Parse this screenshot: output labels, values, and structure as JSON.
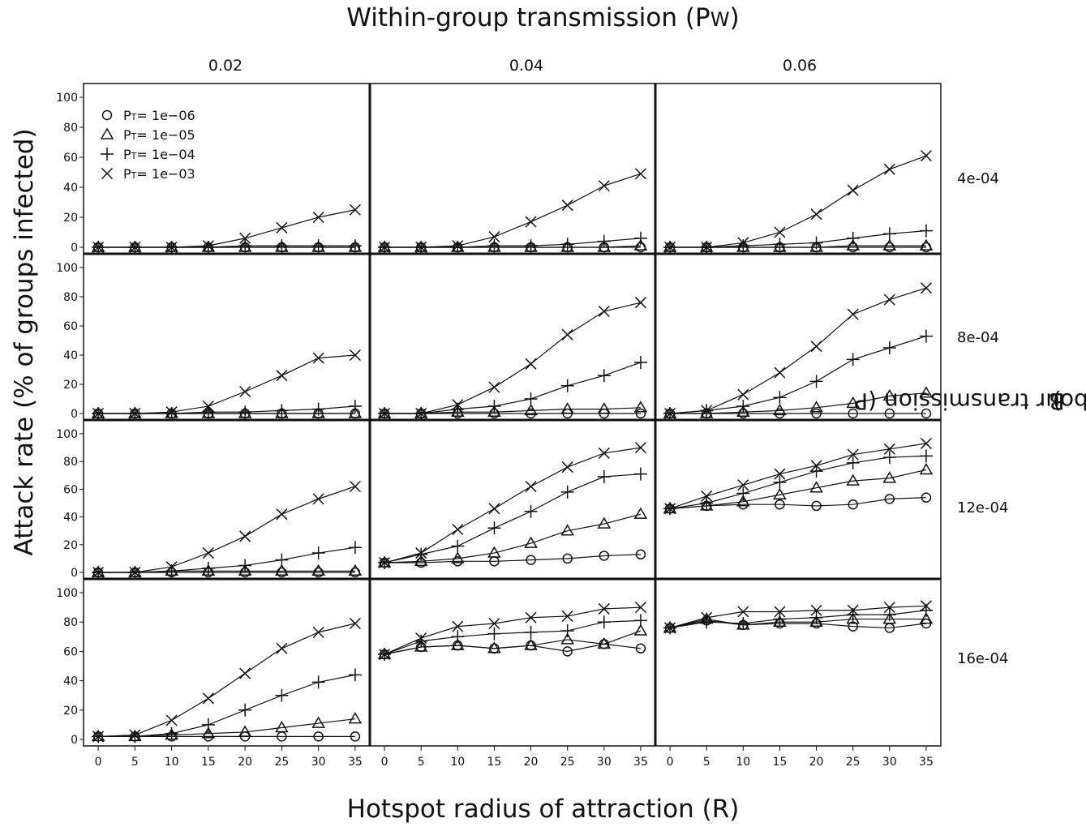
{
  "top_title": {
    "main": "Within-group transmission (P",
    "sub": "W",
    "close": ")"
  },
  "x_title": "Hotspot radius of attraction (R)",
  "y_title": "Attack rate  (% of groups infected)",
  "right_title": {
    "main": "Between-neighbour transmission (P",
    "sub": "B",
    "close": ")"
  },
  "col_labels": [
    "0.02",
    "0.04",
    "0.06"
  ],
  "row_labels": [
    "4e-04",
    "8e-04",
    "12e-04",
    "16e-04"
  ],
  "legend": [
    {
      "prefix": "P",
      "sub": "T",
      "label": "= 1e−06",
      "marker": "circle"
    },
    {
      "prefix": "P",
      "sub": "T",
      "label": "= 1e−05",
      "marker": "triangle"
    },
    {
      "prefix": "P",
      "sub": "T",
      "label": "= 1e−04",
      "marker": "plus"
    },
    {
      "prefix": "P",
      "sub": "T",
      "label": "= 1e−03",
      "marker": "cross"
    }
  ],
  "chart_data": {
    "type": "line",
    "layout": "faceted grid, rows = between-neighbour transmission, columns = within-group transmission",
    "x": [
      0,
      5,
      10,
      15,
      20,
      25,
      30,
      35
    ],
    "x_ticks": [
      "0",
      "5",
      "10",
      "15",
      "20",
      "25",
      "30",
      "35"
    ],
    "y_ticks": [
      "0",
      "20",
      "40",
      "60",
      "80",
      "100"
    ],
    "ylim": [
      0,
      100
    ],
    "xlim": [
      -2,
      37
    ],
    "grid": false,
    "legend_position": "top-left of first panel",
    "panels": [
      {
        "row": 0,
        "col": 0,
        "series": [
          {
            "marker": "circle",
            "values": [
              0,
              0,
              0,
              0,
              0,
              0,
              0,
              0
            ]
          },
          {
            "marker": "triangle",
            "values": [
              0,
              0,
              0,
              0,
              0,
              0,
              0,
              0
            ]
          },
          {
            "marker": "plus",
            "values": [
              0,
              0,
              0,
              0,
              1,
              1,
              1,
              1
            ]
          },
          {
            "marker": "cross",
            "values": [
              0,
              0,
              0,
              1,
              6,
              13,
              20,
              25
            ]
          }
        ]
      },
      {
        "row": 0,
        "col": 1,
        "series": [
          {
            "marker": "circle",
            "values": [
              0,
              0,
              0,
              0,
              0,
              0,
              0,
              0
            ]
          },
          {
            "marker": "triangle",
            "values": [
              0,
              0,
              0,
              0,
              0,
              0,
              0,
              1
            ]
          },
          {
            "marker": "plus",
            "values": [
              0,
              0,
              0,
              1,
              1,
              2,
              4,
              6
            ]
          },
          {
            "marker": "cross",
            "values": [
              0,
              0,
              1,
              7,
              17,
              28,
              41,
              49
            ]
          }
        ]
      },
      {
        "row": 0,
        "col": 2,
        "series": [
          {
            "marker": "circle",
            "values": [
              0,
              0,
              0,
              0,
              0,
              0,
              0,
              0
            ]
          },
          {
            "marker": "triangle",
            "values": [
              0,
              0,
              0,
              0,
              0,
              1,
              1,
              1
            ]
          },
          {
            "marker": "plus",
            "values": [
              0,
              0,
              1,
              2,
              3,
              6,
              9,
              11
            ]
          },
          {
            "marker": "cross",
            "values": [
              0,
              0,
              3,
              10,
              22,
              38,
              52,
              61
            ]
          }
        ]
      },
      {
        "row": 1,
        "col": 0,
        "series": [
          {
            "marker": "circle",
            "values": [
              0,
              0,
              0,
              0,
              0,
              0,
              0,
              0
            ]
          },
          {
            "marker": "triangle",
            "values": [
              0,
              0,
              0,
              0,
              0,
              0,
              0,
              0
            ]
          },
          {
            "marker": "plus",
            "values": [
              0,
              0,
              0,
              1,
              1,
              2,
              3,
              5
            ]
          },
          {
            "marker": "cross",
            "values": [
              0,
              0,
              1,
              5,
              15,
              26,
              38,
              40
            ]
          }
        ]
      },
      {
        "row": 1,
        "col": 1,
        "series": [
          {
            "marker": "circle",
            "values": [
              0,
              0,
              0,
              0,
              0,
              0,
              0,
              0
            ]
          },
          {
            "marker": "triangle",
            "values": [
              0,
              0,
              1,
              1,
              2,
              3,
              3,
              4
            ]
          },
          {
            "marker": "plus",
            "values": [
              0,
              0,
              3,
              5,
              10,
              19,
              26,
              35
            ]
          },
          {
            "marker": "cross",
            "values": [
              0,
              0,
              6,
              18,
              34,
              54,
              70,
              76
            ]
          }
        ]
      },
      {
        "row": 1,
        "col": 2,
        "series": [
          {
            "marker": "circle",
            "values": [
              0,
              0,
              0,
              0,
              0,
              0,
              0,
              0
            ]
          },
          {
            "marker": "triangle",
            "values": [
              0,
              0,
              1,
              2,
              4,
              7,
              12,
              14
            ]
          },
          {
            "marker": "plus",
            "values": [
              0,
              2,
              5,
              11,
              22,
              37,
              45,
              53
            ]
          },
          {
            "marker": "cross",
            "values": [
              0,
              2,
              13,
              28,
              46,
              68,
              78,
              86
            ]
          }
        ]
      },
      {
        "row": 2,
        "col": 0,
        "series": [
          {
            "marker": "circle",
            "values": [
              0,
              0,
              0,
              0,
              0,
              0,
              0,
              0
            ]
          },
          {
            "marker": "triangle",
            "values": [
              0,
              0,
              1,
              1,
              1,
              1,
              1,
              1
            ]
          },
          {
            "marker": "plus",
            "values": [
              0,
              0,
              1,
              3,
              5,
              9,
              14,
              18
            ]
          },
          {
            "marker": "cross",
            "values": [
              0,
              0,
              4,
              14,
              26,
              42,
              53,
              62
            ]
          }
        ]
      },
      {
        "row": 2,
        "col": 1,
        "series": [
          {
            "marker": "circle",
            "values": [
              7,
              7,
              8,
              8,
              9,
              10,
              12,
              13
            ]
          },
          {
            "marker": "triangle",
            "values": [
              7,
              8,
              10,
              14,
              21,
              30,
              35,
              42
            ]
          },
          {
            "marker": "plus",
            "values": [
              7,
              13,
              19,
              32,
              44,
              58,
              69,
              71
            ]
          },
          {
            "marker": "cross",
            "values": [
              7,
              14,
              31,
              46,
              62,
              76,
              86,
              90
            ]
          }
        ]
      },
      {
        "row": 2,
        "col": 2,
        "series": [
          {
            "marker": "circle",
            "values": [
              46,
              48,
              49,
              49,
              48,
              49,
              53,
              54
            ]
          },
          {
            "marker": "triangle",
            "values": [
              46,
              48,
              51,
              56,
              61,
              66,
              68,
              74
            ]
          },
          {
            "marker": "plus",
            "values": [
              46,
              50,
              57,
              65,
              73,
              79,
              83,
              84
            ]
          },
          {
            "marker": "cross",
            "values": [
              46,
              55,
              63,
              71,
              77,
              85,
              89,
              93
            ]
          }
        ]
      },
      {
        "row": 3,
        "col": 0,
        "series": [
          {
            "marker": "circle",
            "values": [
              2,
              2,
              2,
              2,
              2,
              2,
              2,
              2
            ]
          },
          {
            "marker": "triangle",
            "values": [
              2,
              2,
              3,
              4,
              5,
              8,
              11,
              14
            ]
          },
          {
            "marker": "plus",
            "values": [
              2,
              2,
              4,
              10,
              20,
              30,
              39,
              44
            ]
          },
          {
            "marker": "cross",
            "values": [
              2,
              3,
              13,
              28,
              45,
              62,
              73,
              79
            ]
          }
        ]
      },
      {
        "row": 3,
        "col": 1,
        "series": [
          {
            "marker": "circle",
            "values": [
              58,
              63,
              64,
              62,
              64,
              60,
              65,
              62
            ]
          },
          {
            "marker": "triangle",
            "values": [
              58,
              63,
              64,
              62,
              64,
              68,
              65,
              74
            ]
          },
          {
            "marker": "plus",
            "values": [
              58,
              67,
              70,
              72,
              73,
              74,
              80,
              81
            ]
          },
          {
            "marker": "cross",
            "values": [
              58,
              69,
              77,
              79,
              83,
              84,
              89,
              90
            ]
          }
        ]
      },
      {
        "row": 3,
        "col": 2,
        "series": [
          {
            "marker": "circle",
            "values": [
              76,
              81,
              78,
              79,
              79,
              77,
              76,
              79
            ]
          },
          {
            "marker": "triangle",
            "values": [
              76,
              82,
              78,
              80,
              80,
              82,
              82,
              82
            ]
          },
          {
            "marker": "plus",
            "values": [
              76,
              80,
              79,
              82,
              83,
              85,
              85,
              88
            ]
          },
          {
            "marker": "cross",
            "values": [
              76,
              83,
              87,
              87,
              88,
              88,
              90,
              91
            ]
          }
        ]
      }
    ]
  }
}
